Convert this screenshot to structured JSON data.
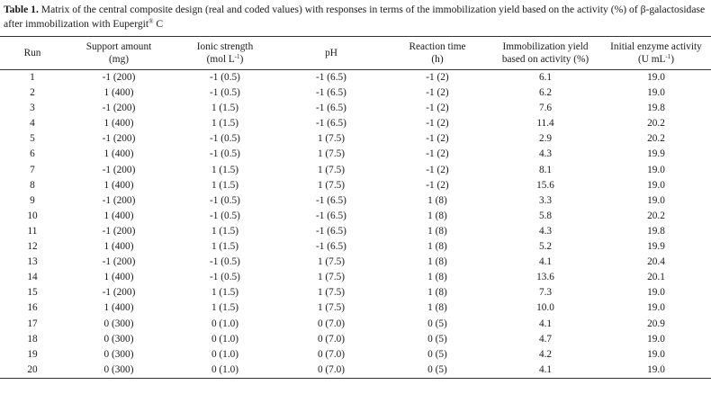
{
  "caption": {
    "label": "Table 1.",
    "text_1": " Matrix of the central composite design (real and coded values) with responses in terms of the immobilization yield based on the activity (%) of ",
    "text_2": "β-galactosidase after immobilization with Eupergit",
    "registered": "®",
    "text_3": " C"
  },
  "columns": {
    "run": {
      "line1": "Run"
    },
    "support": {
      "line1": "Support amount",
      "line2": "(mg)"
    },
    "ionic": {
      "line1": "Ionic strength",
      "line2_pre": "(mol L",
      "line2_sup": "-1",
      "line2_post": ")"
    },
    "ph": {
      "line1": "pH"
    },
    "time": {
      "line1": "Reaction time",
      "line2": "(h)"
    },
    "yield": {
      "line1": "Immobilization yield",
      "line2": "based on activity (%)"
    },
    "activity": {
      "line1": "Initial enzyme activity",
      "line2_pre": "(U mL",
      "line2_sup": "-1",
      "line2_post": ")"
    }
  },
  "rows": [
    [
      "1",
      "-1 (200)",
      "-1 (0.5)",
      "-1 (6.5)",
      "-1 (2)",
      "6.1",
      "19.0"
    ],
    [
      "2",
      "1 (400)",
      "-1 (0.5)",
      "-1 (6.5)",
      "-1 (2)",
      "6.2",
      "19.0"
    ],
    [
      "3",
      "-1 (200)",
      "1 (1.5)",
      "-1 (6.5)",
      "-1 (2)",
      "7.6",
      "19.8"
    ],
    [
      "4",
      "1 (400)",
      "1 (1.5)",
      "-1 (6.5)",
      "-1 (2)",
      "11.4",
      "20.2"
    ],
    [
      "5",
      "-1 (200)",
      "-1 (0.5)",
      "1 (7.5)",
      "-1 (2)",
      "2.9",
      "20.2"
    ],
    [
      "6",
      "1 (400)",
      "-1 (0.5)",
      "1 (7.5)",
      "-1 (2)",
      "4.3",
      "19.9"
    ],
    [
      "7",
      "-1 (200)",
      "1 (1.5)",
      "1 (7.5)",
      "-1 (2)",
      "8.1",
      "19.0"
    ],
    [
      "8",
      "1 (400)",
      "1 (1.5)",
      "1 (7.5)",
      "-1 (2)",
      "15.6",
      "19.0"
    ],
    [
      "9",
      "-1 (200)",
      "-1 (0.5)",
      "-1 (6.5)",
      "1 (8)",
      "3.3",
      "19.0"
    ],
    [
      "10",
      "1 (400)",
      "-1 (0.5)",
      "-1 (6.5)",
      "1 (8)",
      "5.8",
      "20.2"
    ],
    [
      "11",
      "-1 (200)",
      "1 (1.5)",
      "-1 (6.5)",
      "1 (8)",
      "4.3",
      "19.8"
    ],
    [
      "12",
      "1 (400)",
      "1 (1.5)",
      "-1 (6.5)",
      "1 (8)",
      "5.2",
      "19.9"
    ],
    [
      "13",
      "-1 (200)",
      "-1 (0.5)",
      "1 (7.5)",
      "1 (8)",
      "4.1",
      "20.4"
    ],
    [
      "14",
      "1 (400)",
      "-1 (0.5)",
      "1 (7.5)",
      "1 (8)",
      "13.6",
      "20.1"
    ],
    [
      "15",
      "-1 (200)",
      "1 (1.5)",
      "1 (7.5)",
      "1 (8)",
      "7.3",
      "19.0"
    ],
    [
      "16",
      "1 (400)",
      "1 (1.5)",
      "1 (7.5)",
      "1 (8)",
      "10.0",
      "19.0"
    ],
    [
      "17",
      "0 (300)",
      "0 (1.0)",
      "0 (7.0)",
      "0 (5)",
      "4.1",
      "20.9"
    ],
    [
      "18",
      "0 (300)",
      "0 (1.0)",
      "0 (7.0)",
      "0 (5)",
      "4.7",
      "19.0"
    ],
    [
      "19",
      "0 (300)",
      "0 (1.0)",
      "0 (7.0)",
      "0 (5)",
      "4.2",
      "19.0"
    ],
    [
      "20",
      "0 (300)",
      "0 (1.0)",
      "0 (7.0)",
      "0 (5)",
      "4.1",
      "19.0"
    ]
  ]
}
